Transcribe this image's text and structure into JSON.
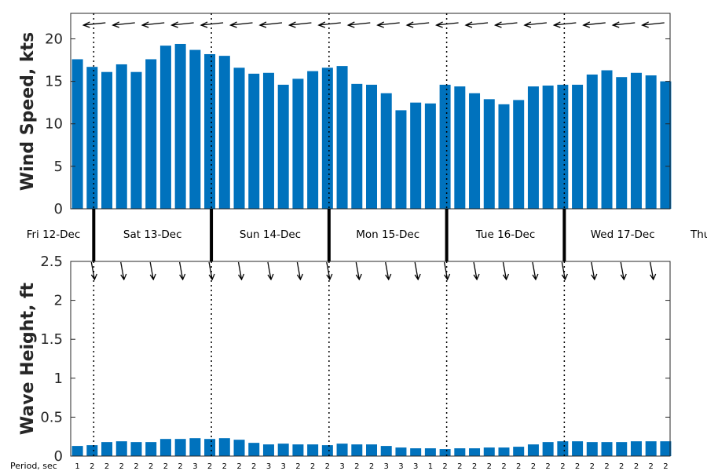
{
  "colors": {
    "bar": "#0072BD",
    "axis": "#262626",
    "marker": "#000000",
    "background": "#ffffff"
  },
  "day_labels": [
    "Fri 12-Dec",
    "Sat 13-Dec",
    "Sun 14-Dec",
    "Mon 15-Dec",
    "Tue 16-Dec",
    "Wed 17-Dec",
    "Thu"
  ],
  "period_row_title": "Period, sec",
  "chart_data": [
    {
      "type": "bar",
      "ylabel": "Wind Speed, kts",
      "ylim": [
        0,
        23
      ],
      "yticks": [
        0,
        5,
        10,
        15,
        20
      ],
      "grid": false,
      "values": [
        17.6,
        16.7,
        16.1,
        17.0,
        16.1,
        17.6,
        19.2,
        19.4,
        18.7,
        18.2,
        18.0,
        16.6,
        15.9,
        16.0,
        14.6,
        15.3,
        16.2,
        16.6,
        16.8,
        14.7,
        14.6,
        13.6,
        11.6,
        12.5,
        12.4,
        14.6,
        14.4,
        13.6,
        12.9,
        12.3,
        12.8,
        14.4,
        14.5,
        14.6,
        14.6,
        15.8,
        16.3,
        15.5,
        16.0,
        15.7,
        15.0
      ],
      "direction_arrows": "wind direction arrows drawn above bars, pointing left (westward)"
    },
    {
      "type": "bar",
      "ylabel": "Wave Height, ft",
      "ylim": [
        0,
        2.5
      ],
      "yticks": [
        0,
        0.5,
        1,
        1.5,
        2,
        2.5
      ],
      "ytick_labels": [
        "0",
        "0.5",
        "1",
        "1.5",
        "2",
        "2.5"
      ],
      "grid": false,
      "values": [
        0.13,
        0.14,
        0.18,
        0.19,
        0.18,
        0.18,
        0.22,
        0.22,
        0.23,
        0.22,
        0.23,
        0.21,
        0.17,
        0.15,
        0.16,
        0.15,
        0.15,
        0.14,
        0.16,
        0.15,
        0.15,
        0.13,
        0.11,
        0.1,
        0.1,
        0.09,
        0.1,
        0.1,
        0.11,
        0.11,
        0.12,
        0.15,
        0.18,
        0.19,
        0.19,
        0.18,
        0.18,
        0.18,
        0.19,
        0.19,
        0.19
      ],
      "periods_sec": [
        1,
        2,
        2,
        2,
        2,
        2,
        2,
        2,
        3,
        2,
        2,
        2,
        2,
        3,
        3,
        2,
        2,
        2,
        3,
        2,
        2,
        3,
        3,
        3,
        1,
        2,
        2,
        2,
        2,
        2,
        2,
        2,
        2,
        2,
        2,
        2,
        2,
        2,
        2,
        2,
        2
      ],
      "direction_arrows": "wave direction arrows drawn above bars, pointing down (southward)"
    }
  ]
}
